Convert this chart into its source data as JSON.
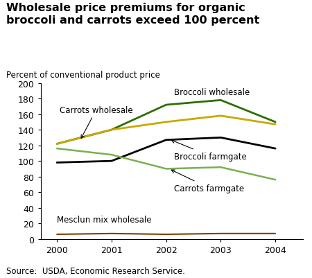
{
  "title": "Wholesale price premiums for organic\nbroccoli and carrots exceed 100 percent",
  "ylabel": "Percent of conventional product price",
  "source": "Source:  USDA, Economic Research Service.",
  "years": [
    2000,
    2001,
    2002,
    2003,
    2004
  ],
  "series": {
    "Broccoli wholesale": {
      "values": [
        122,
        140,
        172,
        178,
        150
      ],
      "color": "#2d6e00",
      "linewidth": 2.0
    },
    "Carrots wholesale": {
      "values": [
        122,
        140,
        150,
        158,
        147
      ],
      "color": "#c8a800",
      "linewidth": 2.0
    },
    "Broccoli farmgate": {
      "values": [
        98,
        100,
        127,
        130,
        116
      ],
      "color": "#000000",
      "linewidth": 2.0
    },
    "Carrots farmgate": {
      "values": [
        116,
        108,
        90,
        92,
        76
      ],
      "color": "#78b050",
      "linewidth": 1.8
    },
    "Mesclun mix wholesale": {
      "values": [
        6,
        7,
        6,
        7,
        7
      ],
      "color": "#7b3f00",
      "linewidth": 1.5
    }
  },
  "ylim": [
    0,
    200
  ],
  "yticks": [
    0,
    20,
    40,
    60,
    80,
    100,
    120,
    140,
    160,
    180,
    200
  ],
  "bg_color": "#ffffff",
  "title_fontsize": 11.5,
  "label_fontsize": 8.5,
  "tick_fontsize": 9,
  "source_fontsize": 8.5
}
